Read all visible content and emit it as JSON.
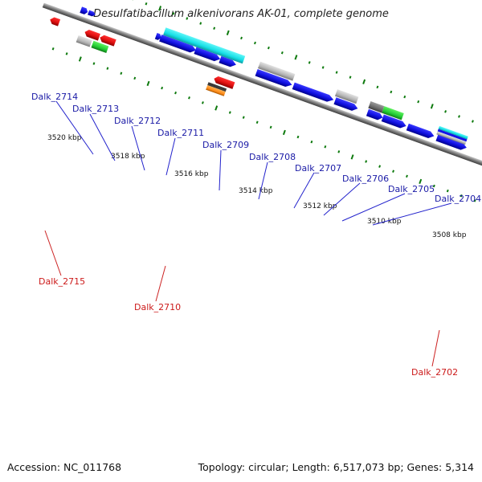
{
  "title": "Desulfatibacillum alkenivorans AK-01, complete genome",
  "footer": {
    "accession": "Accession: NC_011768",
    "summary": "Topology: circular; Length: 6,517,073 bp; Genes: 5,314"
  },
  "scale_labels": [
    "3520 kbp",
    "3518 kbp",
    "3516 kbp",
    "3514 kbp",
    "3512 kbp",
    "3510 kbp",
    "3508 kbp"
  ],
  "gene_labels_top": [
    "Dalk_2714",
    "Dalk_2713",
    "Dalk_2712",
    "Dalk_2711",
    "Dalk_2709",
    "Dalk_2708",
    "Dalk_2707",
    "Dalk_2706",
    "Dalk_2705",
    "Dalk_2704"
  ],
  "gene_labels_bottom": [
    "Dalk_2715",
    "Dalk_2710",
    "Dalk_2702"
  ],
  "colors": {
    "backbone": "#777777",
    "forward_cds": "#1414e6",
    "reverse_cds": "#e61414",
    "highlight": "#19e0e6",
    "other": "#ff8c1a",
    "green": "#22cc33",
    "grey": "#b4b4b4",
    "tick": "#0e7a0e",
    "label_blue": "#1a1aa6",
    "label_red": "#cc1a1a"
  }
}
